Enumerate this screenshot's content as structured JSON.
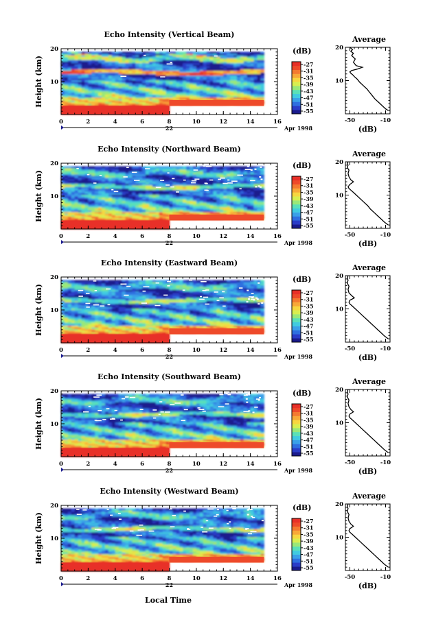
{
  "figure": {
    "xlabel": "Local Time",
    "date_label": "Apr 1998",
    "day_label": "22"
  },
  "chart_data": [
    {
      "type": "heatmap",
      "title": "Echo Intensity (Vertical Beam)",
      "ylabel": "Height (km)",
      "xlim": [
        0,
        16
      ],
      "ylim": [
        0,
        20
      ],
      "xticks": [
        "0",
        "2",
        "4",
        "6",
        "8",
        "10",
        "12",
        "14",
        "16"
      ],
      "yticks": [
        "10",
        "20"
      ]
    },
    {
      "type": "heatmap",
      "title": "Echo Intensity (Northward Beam)",
      "ylabel": "Height (km)",
      "xlim": [
        0,
        16
      ],
      "ylim": [
        0,
        20
      ],
      "xticks": [
        "0",
        "2",
        "4",
        "6",
        "8",
        "10",
        "12",
        "14",
        "16"
      ],
      "yticks": [
        "10",
        "20"
      ]
    },
    {
      "type": "heatmap",
      "title": "Echo Intensity (Eastward Beam)",
      "ylabel": "Height (km)",
      "xlim": [
        0,
        16
      ],
      "ylim": [
        0,
        20
      ],
      "xticks": [
        "0",
        "2",
        "4",
        "6",
        "8",
        "10",
        "12",
        "14",
        "16"
      ],
      "yticks": [
        "10",
        "20"
      ]
    },
    {
      "type": "heatmap",
      "title": "Echo Intensity (Southward Beam)",
      "ylabel": "Height (km)",
      "xlim": [
        0,
        16
      ],
      "ylim": [
        0,
        20
      ],
      "xticks": [
        "0",
        "2",
        "4",
        "6",
        "8",
        "10",
        "12",
        "14",
        "16"
      ],
      "yticks": [
        "10",
        "20"
      ]
    },
    {
      "type": "heatmap",
      "title": "Echo Intensity (Westward Beam)",
      "ylabel": "Height (km)",
      "xlim": [
        0,
        16
      ],
      "ylim": [
        0,
        20
      ],
      "xticks": [
        "0",
        "2",
        "4",
        "6",
        "8",
        "10",
        "12",
        "14",
        "16"
      ],
      "yticks": [
        "10",
        "20"
      ]
    }
  ],
  "colorbar": {
    "label": "(dB)",
    "ticks": [
      "-27",
      "-31",
      "-35",
      "-39",
      "-43",
      "-47",
      "-51",
      "-55"
    ],
    "colors": [
      "#1a1a8c",
      "#2a3cc8",
      "#2f6fe0",
      "#3aa0e8",
      "#40cbe0",
      "#5ae0b8",
      "#9ae878",
      "#d8ee50",
      "#f7d640",
      "#f8a838",
      "#f47a30",
      "#ee4a2a",
      "#e83028"
    ]
  },
  "profiles": {
    "title": "Average",
    "xlabel": "(dB)",
    "xticks": [
      "-50",
      "-10"
    ],
    "yticks": [
      "10",
      "20"
    ],
    "xlim": [
      -55,
      -5
    ],
    "ylim": [
      0,
      20
    ],
    "series": [
      {
        "x": [
          -7,
          -10,
          -14,
          -18,
          -22,
          -25,
          -28,
          -31,
          -35,
          -39,
          -42,
          -45,
          -47,
          -49,
          -50,
          -48,
          -41,
          -36,
          -43,
          -46,
          -44,
          -48,
          -46,
          -49,
          -47,
          -50
        ],
        "y": [
          1,
          1.5,
          2.5,
          3.5,
          4.5,
          5.5,
          6.5,
          7.5,
          8.5,
          9.5,
          10.5,
          11.2,
          11.8,
          12.2,
          12.6,
          13,
          13.5,
          14,
          14.5,
          15.5,
          16.5,
          17.5,
          18.2,
          18.8,
          19.3,
          20
        ]
      },
      {
        "x": [
          -7,
          -11,
          -15,
          -19,
          -23,
          -27,
          -30,
          -34,
          -38,
          -42,
          -46,
          -49,
          -51,
          -52,
          -50,
          -46,
          -49,
          -51,
          -52,
          -51,
          -53,
          -52,
          -53,
          -52
        ],
        "y": [
          1,
          1.8,
          2.8,
          3.8,
          4.8,
          5.8,
          6.8,
          7.8,
          8.8,
          9.8,
          10.8,
          11.5,
          12,
          12.5,
          13.2,
          14,
          14.6,
          15.5,
          16.5,
          17.5,
          18.3,
          19,
          19.5,
          20
        ]
      },
      {
        "x": [
          -7,
          -11,
          -15,
          -19,
          -23,
          -27,
          -31,
          -35,
          -39,
          -43,
          -47,
          -50,
          -51,
          -50,
          -45,
          -48,
          -51,
          -52,
          -51,
          -53,
          -52,
          -53,
          -52
        ],
        "y": [
          1,
          1.8,
          2.8,
          3.8,
          4.8,
          5.8,
          6.8,
          7.8,
          8.8,
          9.8,
          10.8,
          11.5,
          12,
          12.6,
          13.3,
          14,
          14.8,
          15.8,
          16.8,
          17.8,
          18.6,
          19.3,
          20
        ]
      },
      {
        "x": [
          -7,
          -11,
          -15,
          -19,
          -23,
          -27,
          -31,
          -35,
          -39,
          -43,
          -47,
          -50,
          -51,
          -50,
          -46,
          -49,
          -51,
          -52,
          -51,
          -53,
          -52,
          -53,
          -52
        ],
        "y": [
          1,
          1.8,
          2.8,
          3.8,
          4.8,
          5.8,
          6.8,
          7.8,
          8.8,
          9.8,
          10.8,
          11.5,
          12,
          12.6,
          13.3,
          14,
          14.8,
          15.8,
          16.8,
          17.8,
          18.6,
          19.3,
          20
        ]
      },
      {
        "x": [
          -7,
          -11,
          -15,
          -19,
          -23,
          -27,
          -31,
          -35,
          -39,
          -43,
          -47,
          -50,
          -51,
          -50,
          -46,
          -49,
          -51,
          -52,
          -51,
          -53,
          -52,
          -53,
          -52
        ],
        "y": [
          1,
          1.8,
          2.8,
          3.8,
          4.8,
          5.8,
          6.8,
          7.8,
          8.8,
          9.8,
          10.8,
          11.5,
          12,
          12.6,
          13.3,
          14,
          14.8,
          15.8,
          16.8,
          17.8,
          18.6,
          19.3,
          20
        ]
      }
    ]
  }
}
